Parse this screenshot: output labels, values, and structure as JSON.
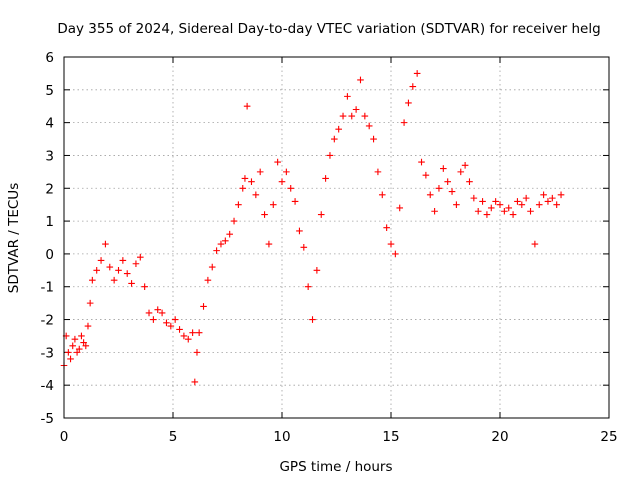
{
  "chart_data": {
    "type": "scatter",
    "title": "Day 355 of 2024, Sidereal Day-to-day VTEC variation (SDTVAR) for receiver helg",
    "xlabel": "GPS time / hours",
    "ylabel": "SDTVAR / TECUs",
    "xlim": [
      0,
      25
    ],
    "ylim": [
      -5,
      6
    ],
    "x_ticks": [
      "0",
      "5",
      "10",
      "15",
      "20",
      "25"
    ],
    "y_ticks": [
      "-5",
      "-4",
      "-3",
      "-2",
      "-1",
      "0",
      "1",
      "2",
      "3",
      "4",
      "5",
      "6"
    ],
    "grid": true,
    "marker": "+",
    "color": "#ff0000",
    "series": [
      {
        "name": "SDTVAR",
        "x": [
          0.0,
          0.1,
          0.2,
          0.3,
          0.4,
          0.5,
          0.6,
          0.7,
          0.8,
          0.9,
          1.0,
          1.1,
          1.2,
          1.3,
          1.5,
          1.7,
          1.9,
          2.1,
          2.3,
          2.5,
          2.7,
          2.9,
          3.1,
          3.3,
          3.5,
          3.7,
          3.9,
          4.1,
          4.3,
          4.5,
          4.7,
          4.9,
          5.1,
          5.3,
          5.5,
          5.7,
          5.9,
          6.0,
          6.1,
          6.2,
          6.4,
          6.6,
          6.8,
          7.0,
          7.2,
          7.4,
          7.6,
          7.8,
          8.0,
          8.2,
          8.3,
          8.4,
          8.6,
          8.8,
          9.0,
          9.2,
          9.4,
          9.6,
          9.8,
          10.0,
          10.2,
          10.4,
          10.6,
          10.8,
          11.0,
          11.2,
          11.4,
          11.6,
          11.8,
          12.0,
          12.2,
          12.4,
          12.6,
          12.8,
          13.0,
          13.2,
          13.4,
          13.6,
          13.8,
          14.0,
          14.2,
          14.4,
          14.6,
          14.8,
          15.0,
          15.2,
          15.4,
          15.6,
          15.8,
          16.0,
          16.2,
          16.4,
          16.6,
          16.8,
          17.0,
          17.2,
          17.4,
          17.6,
          17.8,
          18.0,
          18.2,
          18.4,
          18.6,
          18.8,
          19.0,
          19.2,
          19.4,
          19.6,
          19.8,
          20.0,
          20.2,
          20.4,
          20.6,
          20.8,
          21.0,
          21.2,
          21.4,
          21.6,
          21.8,
          22.0,
          22.2,
          22.4,
          22.6,
          22.8
        ],
        "y": [
          -3.4,
          -2.5,
          -3.0,
          -3.2,
          -2.8,
          -2.6,
          -3.0,
          -2.9,
          -2.5,
          -2.7,
          -2.8,
          -2.2,
          -1.5,
          -0.8,
          -0.5,
          -0.2,
          0.3,
          -0.4,
          -0.8,
          -0.5,
          -0.2,
          -0.6,
          -0.9,
          -0.3,
          -0.1,
          -1.0,
          -1.8,
          -2.0,
          -1.7,
          -1.8,
          -2.1,
          -2.2,
          -2.0,
          -2.3,
          -2.5,
          -2.6,
          -2.4,
          -3.9,
          -3.0,
          -2.4,
          -1.6,
          -0.8,
          -0.4,
          0.1,
          0.3,
          0.4,
          0.6,
          1.0,
          1.5,
          2.0,
          2.3,
          4.5,
          2.2,
          1.8,
          2.5,
          1.2,
          0.3,
          1.5,
          2.8,
          2.2,
          2.5,
          2.0,
          1.6,
          0.7,
          0.2,
          -1.0,
          -2.0,
          -0.5,
          1.2,
          2.3,
          3.0,
          3.5,
          3.8,
          4.2,
          4.8,
          4.2,
          4.4,
          5.3,
          4.2,
          3.9,
          3.5,
          2.5,
          1.8,
          0.8,
          0.3,
          0.0,
          1.4,
          4.0,
          4.6,
          5.1,
          5.5,
          2.8,
          2.4,
          1.8,
          1.3,
          2.0,
          2.6,
          2.2,
          1.9,
          1.5,
          2.5,
          2.7,
          2.2,
          1.7,
          1.3,
          1.6,
          1.2,
          1.4,
          1.6,
          1.5,
          1.3,
          1.4,
          1.2,
          1.6,
          1.5,
          1.7,
          1.3,
          0.3,
          1.5,
          1.8,
          1.6,
          1.7,
          1.5,
          1.8
        ]
      }
    ]
  }
}
